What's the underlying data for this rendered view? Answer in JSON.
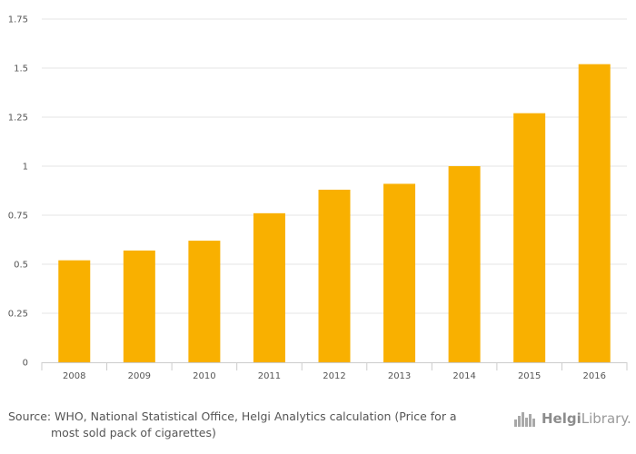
{
  "chart_data": {
    "type": "bar",
    "categories": [
      "2008",
      "2009",
      "2010",
      "2011",
      "2012",
      "2013",
      "2014",
      "2015",
      "2016"
    ],
    "values": [
      0.52,
      0.57,
      0.62,
      0.76,
      0.88,
      0.91,
      1.0,
      1.27,
      1.52
    ],
    "y_ticks": [
      "0",
      "0.25",
      "0.5",
      "0.75",
      "1",
      "1.25",
      "1.5",
      "1.75"
    ],
    "ylim": [
      0,
      1.75
    ],
    "grid": true,
    "legend": "none",
    "bar_color": "#f9b000",
    "grid_color": "#e6e6e6"
  },
  "footer": {
    "source_line1": "Source: WHO, National Statistical Office, Helgi Analytics calculation (Price for a",
    "source_line2": "most sold pack of cigarettes)",
    "logo_bold": "Helgi",
    "logo_rest": "Library."
  }
}
